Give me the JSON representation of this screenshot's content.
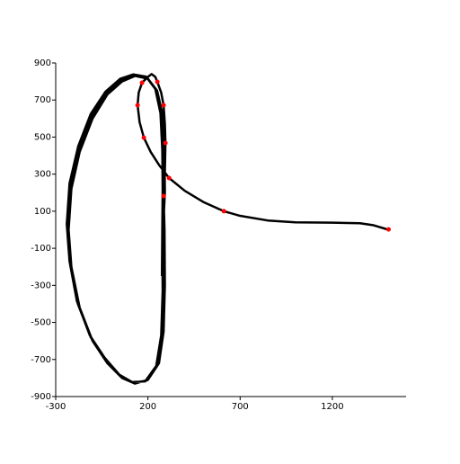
{
  "chart_data": {
    "type": "line",
    "xlim": [
      -300,
      1600
    ],
    "xticks": [
      -300,
      200,
      700,
      1200
    ],
    "ylim": [
      -900,
      900
    ],
    "yticks": [
      -900,
      -700,
      -500,
      -300,
      -100,
      100,
      300,
      500,
      700,
      900
    ],
    "series": [
      {
        "color": "#000000",
        "x": [
          1505,
          1420,
          1350,
          1200,
          1000,
          850,
          700,
          612,
          500,
          400,
          315,
          260,
          215,
          178,
          155,
          144,
          150,
          168,
          200,
          220,
          240,
          251,
          272,
          285,
          292,
          295,
          292,
          285,
          290,
          292,
          285,
          260,
          200,
          130,
          60,
          -20,
          -100,
          -170,
          -215,
          -230,
          -215,
          -170,
          -100,
          -20,
          60,
          130,
          200,
          250,
          280,
          290,
          292,
          282,
          284,
          278,
          250,
          190,
          120,
          50,
          -30,
          -110,
          -180,
          -222,
          -238,
          -222,
          -175,
          -105,
          -25,
          55,
          125,
          195,
          245,
          272,
          282,
          284,
          278,
          280,
          272,
          245,
          185,
          115,
          45,
          -35,
          -115,
          -185,
          -225,
          -240,
          -225,
          -178,
          -110,
          -30,
          50,
          120,
          190,
          240,
          268,
          278,
          280,
          278,
          276
        ],
        "values": [
          0,
          25,
          35,
          38,
          40,
          50,
          75,
          100,
          150,
          210,
          279,
          350,
          420,
          497,
          580,
          672,
          740,
          793,
          825,
          840,
          825,
          798,
          740,
          672,
          570,
          468,
          320,
          182,
          0,
          -300,
          -550,
          -720,
          -810,
          -830,
          -800,
          -720,
          -600,
          -420,
          -200,
          0,
          220,
          420,
          600,
          730,
          800,
          830,
          815,
          750,
          620,
          420,
          200,
          0,
          -320,
          -560,
          -730,
          -815,
          -825,
          -790,
          -700,
          -580,
          -400,
          -180,
          20,
          240,
          440,
          615,
          740,
          810,
          835,
          822,
          755,
          625,
          420,
          200,
          0,
          -330,
          -570,
          -735,
          -818,
          -822,
          -782,
          -690,
          -570,
          -385,
          -170,
          30,
          250,
          450,
          625,
          745,
          815,
          838,
          826,
          760,
          630,
          430,
          220,
          0,
          -250
        ]
      },
      {
        "color": "#ff0000",
        "style": "points",
        "x": [
          1505,
          612,
          315,
          178,
          144,
          168,
          251,
          285,
          295,
          285
        ],
        "values": [
          2,
          100,
          279,
          497,
          672,
          793,
          798,
          672,
          468,
          182
        ]
      }
    ]
  }
}
